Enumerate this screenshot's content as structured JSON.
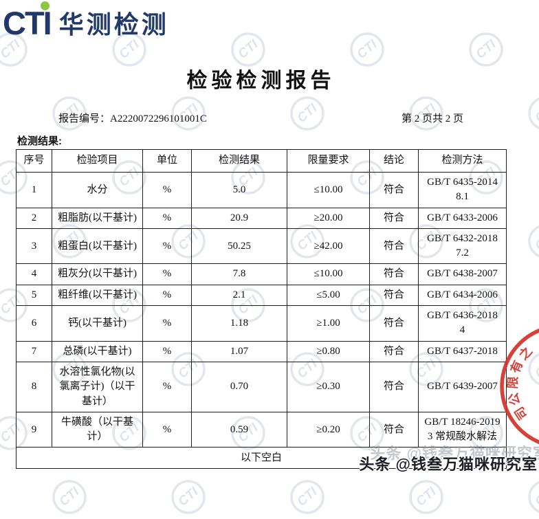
{
  "logo": {
    "cti": "CTI",
    "cn": "华测检测"
  },
  "title": "检验检测报告",
  "meta": {
    "report_no_label": "报告编号：",
    "report_no": "A2220072296101001C",
    "page_info": "第 2 页共 2 页"
  },
  "section_label": "检测结果:",
  "table": {
    "headers": [
      "序号",
      "检验项目",
      "单位",
      "检测结果",
      "限量要求",
      "结论",
      "检测方法"
    ],
    "rows": [
      {
        "no": "1",
        "item": "水分",
        "unit": "%",
        "result": "5.0",
        "limit": "≤10.00",
        "conclusion": "符合",
        "method": [
          "GB/T 6435-2014",
          "8.1"
        ]
      },
      {
        "no": "2",
        "item": "粗脂肪(以干基计)",
        "unit": "%",
        "result": "20.9",
        "limit": "≥20.00",
        "conclusion": "符合",
        "method": [
          "GB/T 6433-2006"
        ]
      },
      {
        "no": "3",
        "item": "粗蛋白(以干基计)",
        "unit": "%",
        "result": "50.25",
        "limit": "≥42.00",
        "conclusion": "符合",
        "method": [
          "GB/T 6432-2018",
          "7.2"
        ]
      },
      {
        "no": "4",
        "item": "粗灰分(以干基计)",
        "unit": "%",
        "result": "7.8",
        "limit": "≤10.00",
        "conclusion": "符合",
        "method": [
          "GB/T 6438-2007"
        ]
      },
      {
        "no": "5",
        "item": "粗纤维(以干基计)",
        "unit": "%",
        "result": "2.1",
        "limit": "≤5.00",
        "conclusion": "符合",
        "method": [
          "GB/T 6434-2006"
        ]
      },
      {
        "no": "6",
        "item": "钙(以干基计)",
        "unit": "%",
        "result": "1.18",
        "limit": "≥1.00",
        "conclusion": "符合",
        "method": [
          "GB/T 6436-2018",
          "4"
        ]
      },
      {
        "no": "7",
        "item": "总磷(以干基计)",
        "unit": "%",
        "result": "1.07",
        "limit": "≥0.80",
        "conclusion": "符合",
        "method": [
          "GB/T 6437-2018"
        ]
      },
      {
        "no": "8",
        "item": "水溶性氯化物(以氯离子计)（以干基计）",
        "unit": "%",
        "result": "0.70",
        "limit": "≥0.30",
        "conclusion": "符合",
        "method": [
          "GB/T 6439-2007"
        ]
      },
      {
        "no": "9",
        "item": "牛磺酸（以干基计）",
        "unit": "%",
        "result": "0.59",
        "limit": "≥0.20",
        "conclusion": "符合",
        "method": [
          "GB/T 18246-2019",
          "3 常规酸水解法"
        ]
      }
    ],
    "footer_note": "以下空白"
  },
  "watermark": {
    "circle_text": "CTI",
    "social": "头条 @钱叁万猫咪研究室"
  },
  "stamp": {
    "chars": [
      "之",
      "有",
      "限",
      "公",
      "司"
    ]
  },
  "colors": {
    "brand_navy": "#21386b",
    "brand_green": "#8dc63f",
    "stamp_red": "#d23228",
    "watermark_grey": "#dfe2ea"
  }
}
